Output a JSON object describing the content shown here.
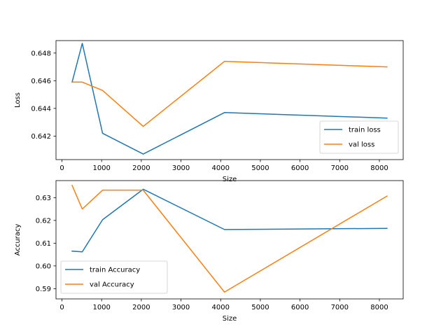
{
  "chart_data": [
    {
      "type": "line",
      "xlabel": "Size",
      "ylabel": "Loss",
      "xlim": [
        -150,
        8600
      ],
      "ylim": [
        0.6403,
        0.6489
      ],
      "xticks": [
        0,
        1000,
        2000,
        3000,
        4000,
        5000,
        6000,
        7000,
        8000
      ],
      "yticks": [
        0.642,
        0.644,
        0.646,
        0.648
      ],
      "ytick_labels": [
        "0.642",
        "0.644",
        "0.646",
        "0.648"
      ],
      "x": [
        256,
        512,
        1024,
        2048,
        4096,
        8192
      ],
      "series": [
        {
          "name": "train loss",
          "color": "#1f77b4",
          "values": [
            0.6459,
            0.6487,
            0.6422,
            0.6407,
            0.6437,
            0.6433
          ]
        },
        {
          "name": "val loss",
          "color": "#ff7f0e",
          "values": [
            0.6459,
            0.6459,
            0.6453,
            0.6427,
            0.6474,
            0.647
          ]
        }
      ],
      "legend": "lower-right",
      "grid": false
    },
    {
      "type": "line",
      "xlabel": "Size",
      "ylabel": "Accuracy",
      "xlim": [
        -150,
        8600
      ],
      "ylim": [
        0.5855,
        0.6375
      ],
      "xticks": [
        0,
        1000,
        2000,
        3000,
        4000,
        5000,
        6000,
        7000,
        8000
      ],
      "yticks": [
        0.59,
        0.6,
        0.61,
        0.62,
        0.63
      ],
      "ytick_labels": [
        "0.59",
        "0.60",
        "0.61",
        "0.62",
        "0.63"
      ],
      "x": [
        256,
        512,
        1024,
        2048,
        4096,
        8192
      ],
      "series": [
        {
          "name": "train Accuracy",
          "color": "#1f77b4",
          "values": [
            0.6065,
            0.6062,
            0.6203,
            0.6337,
            0.616,
            0.6165
          ]
        },
        {
          "name": "val Accuracy",
          "color": "#ff7f0e",
          "values": [
            0.6354,
            0.625,
            0.6333,
            0.6333,
            0.5885,
            0.6307
          ]
        }
      ],
      "legend": "lower-left",
      "grid": false
    }
  ]
}
